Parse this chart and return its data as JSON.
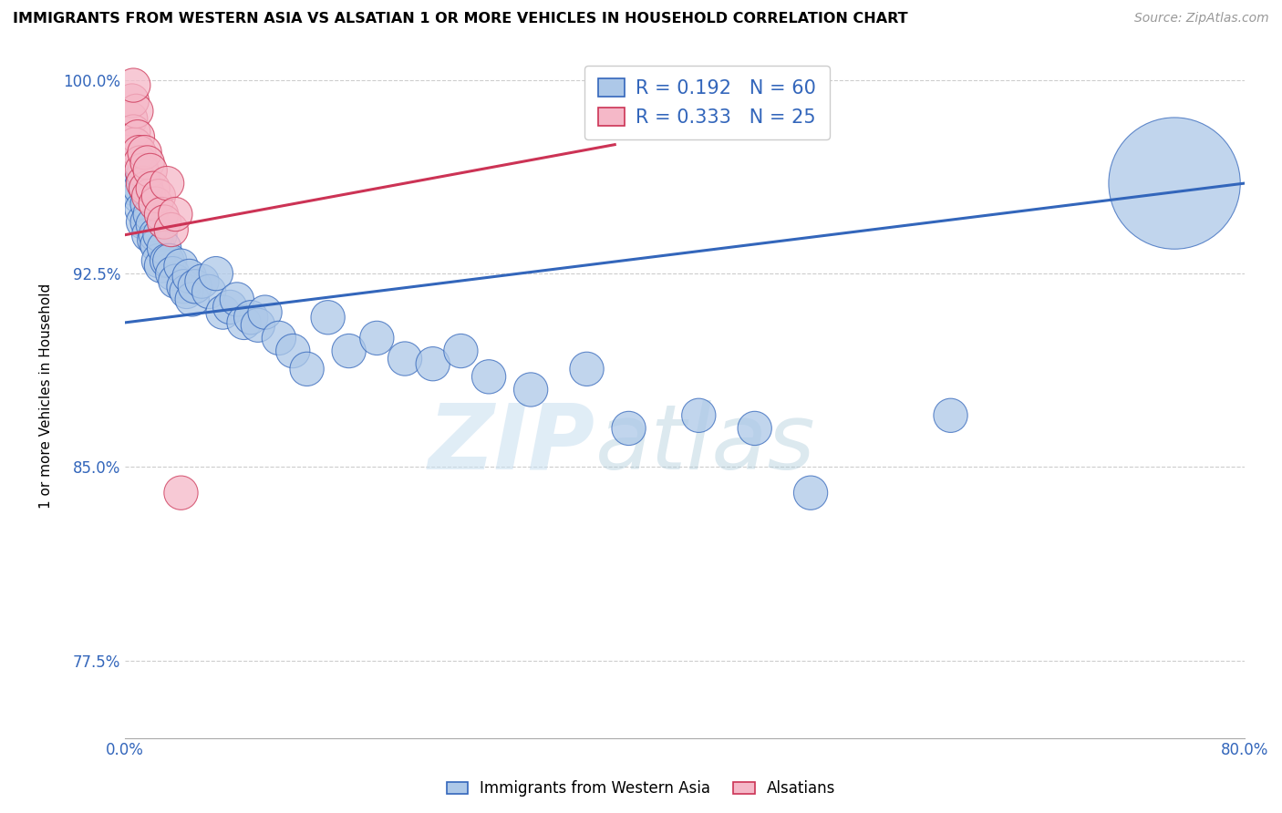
{
  "title": "IMMIGRANTS FROM WESTERN ASIA VS ALSATIAN 1 OR MORE VEHICLES IN HOUSEHOLD CORRELATION CHART",
  "source_text": "Source: ZipAtlas.com",
  "ylabel": "1 or more Vehicles in Household",
  "xlim": [
    0.0,
    0.8
  ],
  "ylim": [
    0.745,
    1.01
  ],
  "xticks": [
    0.0,
    0.1,
    0.2,
    0.3,
    0.4,
    0.5,
    0.6,
    0.7,
    0.8
  ],
  "xticklabels": [
    "0.0%",
    "",
    "",
    "",
    "",
    "",
    "",
    "",
    "80.0%"
  ],
  "yticks": [
    0.775,
    0.85,
    0.925,
    1.0
  ],
  "yticklabels": [
    "77.5%",
    "85.0%",
    "92.5%",
    "100.0%"
  ],
  "blue_color": "#adc8e8",
  "pink_color": "#f5b8c8",
  "blue_line_color": "#3366bb",
  "pink_line_color": "#cc3355",
  "R_blue": 0.192,
  "N_blue": 60,
  "R_pink": 0.333,
  "N_pink": 25,
  "legend_label_blue": "Immigrants from Western Asia",
  "legend_label_pink": "Alsatians",
  "watermark_zip": "ZIP",
  "watermark_atlas": "atlas",
  "blue_trend_x": [
    0.0,
    0.8
  ],
  "blue_trend_y": [
    0.906,
    0.96
  ],
  "pink_trend_x": [
    0.0,
    0.35
  ],
  "pink_trend_y": [
    0.94,
    0.975
  ],
  "blue_scatter_x": [
    0.004,
    0.006,
    0.006,
    0.008,
    0.01,
    0.011,
    0.012,
    0.013,
    0.013,
    0.015,
    0.016,
    0.016,
    0.017,
    0.018,
    0.02,
    0.021,
    0.022,
    0.023,
    0.024,
    0.025,
    0.026,
    0.028,
    0.03,
    0.032,
    0.034,
    0.036,
    0.04,
    0.042,
    0.044,
    0.046,
    0.048,
    0.05,
    0.055,
    0.06,
    0.065,
    0.07,
    0.075,
    0.08,
    0.085,
    0.09,
    0.095,
    0.1,
    0.11,
    0.12,
    0.13,
    0.145,
    0.16,
    0.18,
    0.2,
    0.22,
    0.24,
    0.26,
    0.29,
    0.33,
    0.36,
    0.41,
    0.45,
    0.49,
    0.59,
    0.75
  ],
  "blue_scatter_y": [
    0.965,
    0.97,
    0.958,
    0.96,
    0.955,
    0.958,
    0.95,
    0.963,
    0.945,
    0.958,
    0.952,
    0.945,
    0.94,
    0.948,
    0.944,
    0.938,
    0.94,
    0.936,
    0.93,
    0.94,
    0.928,
    0.935,
    0.93,
    0.93,
    0.925,
    0.922,
    0.928,
    0.92,
    0.918,
    0.924,
    0.915,
    0.92,
    0.922,
    0.918,
    0.925,
    0.91,
    0.912,
    0.915,
    0.906,
    0.908,
    0.905,
    0.91,
    0.9,
    0.895,
    0.888,
    0.908,
    0.895,
    0.9,
    0.892,
    0.89,
    0.895,
    0.885,
    0.88,
    0.888,
    0.865,
    0.87,
    0.865,
    0.84,
    0.87,
    0.96
  ],
  "blue_scatter_sizes": [
    40,
    40,
    40,
    40,
    40,
    40,
    40,
    40,
    40,
    40,
    40,
    40,
    40,
    40,
    40,
    40,
    40,
    40,
    40,
    40,
    40,
    40,
    40,
    40,
    40,
    40,
    40,
    40,
    40,
    40,
    40,
    40,
    40,
    40,
    40,
    40,
    40,
    40,
    40,
    40,
    40,
    40,
    40,
    40,
    40,
    40,
    40,
    40,
    40,
    40,
    40,
    40,
    40,
    40,
    40,
    40,
    40,
    40,
    40,
    600
  ],
  "pink_scatter_x": [
    0.004,
    0.005,
    0.006,
    0.007,
    0.008,
    0.009,
    0.01,
    0.011,
    0.012,
    0.013,
    0.014,
    0.015,
    0.016,
    0.017,
    0.018,
    0.02,
    0.022,
    0.024,
    0.026,
    0.028,
    0.03,
    0.033,
    0.036,
    0.04,
    0.006
  ],
  "pink_scatter_y": [
    0.985,
    0.992,
    0.98,
    0.975,
    0.988,
    0.978,
    0.972,
    0.968,
    0.965,
    0.96,
    0.972,
    0.958,
    0.968,
    0.955,
    0.965,
    0.958,
    0.952,
    0.955,
    0.948,
    0.945,
    0.96,
    0.942,
    0.948,
    0.84,
    0.998
  ],
  "pink_scatter_sizes": [
    40,
    40,
    40,
    40,
    40,
    40,
    40,
    40,
    40,
    40,
    40,
    40,
    40,
    40,
    40,
    40,
    40,
    40,
    40,
    40,
    40,
    40,
    40,
    40,
    40
  ]
}
